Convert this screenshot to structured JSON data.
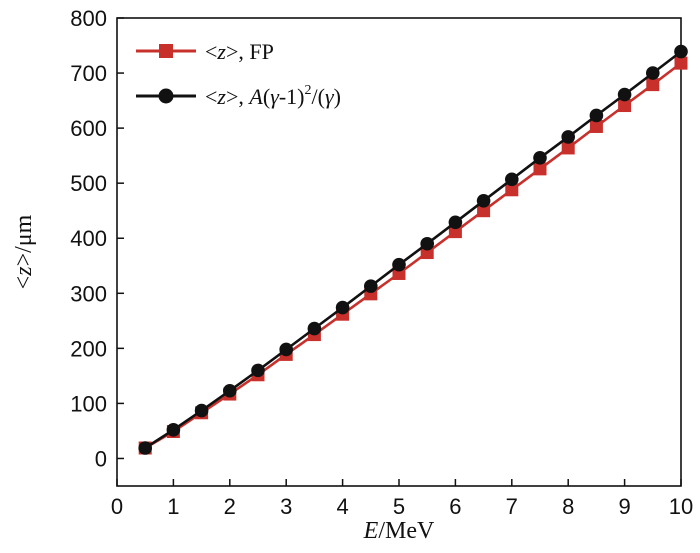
{
  "chart_data": {
    "type": "line",
    "title": "",
    "xlabel": {
      "var": "E",
      "unit": "/MeV"
    },
    "ylabel": {
      "pre": "<",
      "var": "z",
      "post": ">/μm"
    },
    "xlim": [
      0,
      10
    ],
    "ylim": [
      -50,
      800
    ],
    "xticks": [
      0,
      1,
      2,
      3,
      4,
      5,
      6,
      7,
      8,
      9,
      10
    ],
    "yticks": [
      0,
      100,
      200,
      300,
      400,
      500,
      600,
      700,
      800
    ],
    "grid": false,
    "legend_position": "top-left",
    "x": [
      0.5,
      1.0,
      1.5,
      2.0,
      2.5,
      3.0,
      3.5,
      4.0,
      4.5,
      5.0,
      5.5,
      6.0,
      6.5,
      7.0,
      7.5,
      8.0,
      8.5,
      9.0,
      9.5,
      10.0
    ],
    "series": [
      {
        "legend": {
          "pre": "<",
          "var": "z",
          "post": ">, FP"
        },
        "color": "#c8302c",
        "marker": "square",
        "values": [
          19,
          49,
          83,
          117,
          152,
          189,
          225,
          262,
          299,
          336,
          374,
          412,
          450,
          488,
          526,
          564,
          603,
          641,
          679,
          718
        ]
      },
      {
        "legend": {
          "pre": "<",
          "var": "z",
          "mid": ">, ",
          "A": "A",
          "p1": "(",
          "g1": "γ",
          "p2": "-1)",
          "sup": "2",
          "p3": "/(",
          "g2": "γ",
          "p4": ")"
        },
        "color": "#111111",
        "marker": "circle",
        "values": [
          19,
          52,
          87,
          123,
          160,
          198,
          236,
          274,
          313,
          352,
          390,
          429,
          468,
          507,
          546,
          584,
          623,
          661,
          700,
          739
        ]
      }
    ]
  }
}
